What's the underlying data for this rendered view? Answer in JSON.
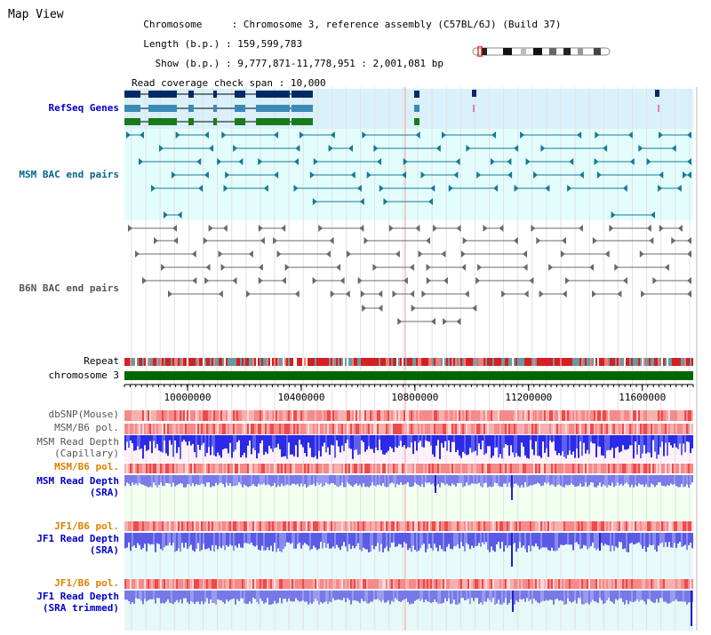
{
  "title": "Map View",
  "header": {
    "chromosome_label": "Chromosome",
    "chromosome_value": "Chromosome 3, reference assembly (C57BL/6J) (Build 37)",
    "length_label": "Length (b.p.)",
    "length_value": "159,599,783",
    "show_label": "Show (b.p.)",
    "show_value": "9,777,871-11,778,951 : 2,001,081 bp",
    "span_label": "Read coverage check span",
    "span_value": "10,000"
  },
  "region": {
    "start": 9777871,
    "end": 11778951
  },
  "axis": {
    "ticks": [
      10000000,
      10400000,
      10800000,
      11200000,
      11600000
    ],
    "tick_labels": [
      "10000000",
      "10400000",
      "10800000",
      "11200000",
      "11600000"
    ]
  },
  "tracks": {
    "refseq": "RefSeq Genes",
    "msm_bac": "MSM BAC end pairs",
    "b6n_bac": "B6N BAC end pairs",
    "repeat": "Repeat",
    "chromosome": "chromosome 3",
    "dbsnp": "dbSNP(Mouse)",
    "msm_pol": "MSM/B6 pol.",
    "msm_depth_cap_1": "MSM Read Depth",
    "msm_depth_cap_2": "(Capillary)",
    "msm_pol2": "MSM/B6 pol.",
    "msm_depth_sra_1": "MSM Read Depth",
    "msm_depth_sra_2": "(SRA)",
    "jf1_pol": "JF1/B6 pol.",
    "jf1_depth_1": "JF1 Read Depth",
    "jf1_depth_2": "(SRA)",
    "jf1_pol2": "JF1/B6 pol.",
    "jf1_trim_1": "JF1 Read Depth",
    "jf1_trim_2": "(SRA trimmed)"
  },
  "colors": {
    "refseq_label": "#0000cc",
    "msm_label": "#006688",
    "b6n_label": "#555555",
    "pol_orange": "#e08000",
    "depth_blue": "#0000cc",
    "chromosome_bar": "#006600",
    "gene_dark": "#002a66",
    "gene_mid": "#3a8ab5",
    "gene_green": "#1a7a1a"
  }
}
